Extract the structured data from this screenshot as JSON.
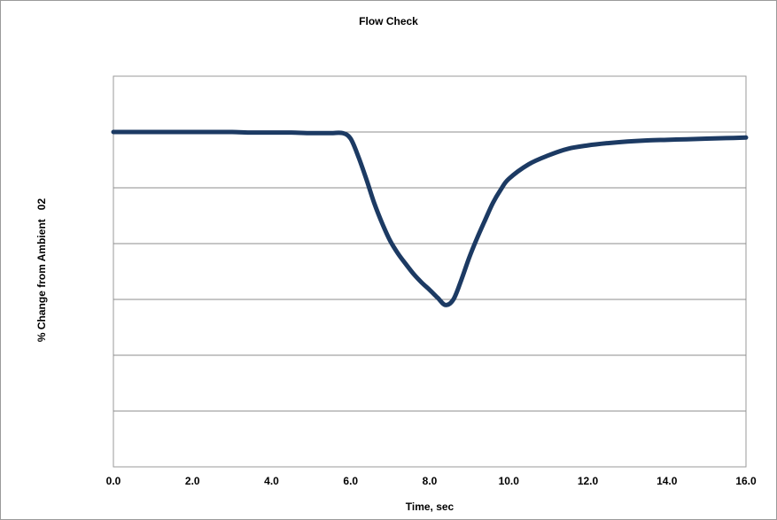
{
  "chart_data": {
    "type": "line",
    "title": "Flow Check",
    "xlabel": "Time, sec",
    "ylabel": "% Change from Ambient   02",
    "xlim": [
      0,
      16
    ],
    "ylim": [
      0,
      7
    ],
    "x_ticks": [
      "0.0",
      "2.0",
      "4.0",
      "6.0",
      "8.0",
      "10.0",
      "12.0",
      "14.0",
      "16.0"
    ],
    "y_gridlines": [
      1,
      2,
      3,
      4,
      5,
      6
    ],
    "grid": true,
    "legend": "none",
    "series": [
      {
        "color": "#1c3a63",
        "x": [
          0.0,
          0.5,
          1.0,
          1.5,
          2.0,
          2.5,
          3.0,
          3.5,
          4.0,
          4.5,
          5.0,
          5.5,
          5.8,
          6.0,
          6.2,
          6.4,
          6.6,
          6.8,
          7.0,
          7.2,
          7.4,
          7.6,
          7.8,
          8.0,
          8.2,
          8.4,
          8.6,
          8.8,
          9.0,
          9.2,
          9.4,
          9.6,
          9.8,
          10.0,
          10.5,
          11.0,
          11.5,
          12.0,
          12.5,
          13.0,
          13.5,
          14.0,
          14.5,
          15.0,
          15.5,
          16.0
        ],
        "y": [
          6.0,
          6.0,
          6.0,
          6.0,
          6.0,
          6.0,
          6.0,
          5.99,
          5.99,
          5.99,
          5.98,
          5.98,
          5.98,
          5.88,
          5.55,
          5.15,
          4.72,
          4.36,
          4.05,
          3.82,
          3.63,
          3.45,
          3.3,
          3.17,
          3.03,
          2.9,
          3.0,
          3.35,
          3.75,
          4.1,
          4.42,
          4.73,
          4.97,
          5.16,
          5.42,
          5.58,
          5.7,
          5.76,
          5.8,
          5.83,
          5.85,
          5.86,
          5.87,
          5.88,
          5.89,
          5.9
        ]
      }
    ]
  }
}
